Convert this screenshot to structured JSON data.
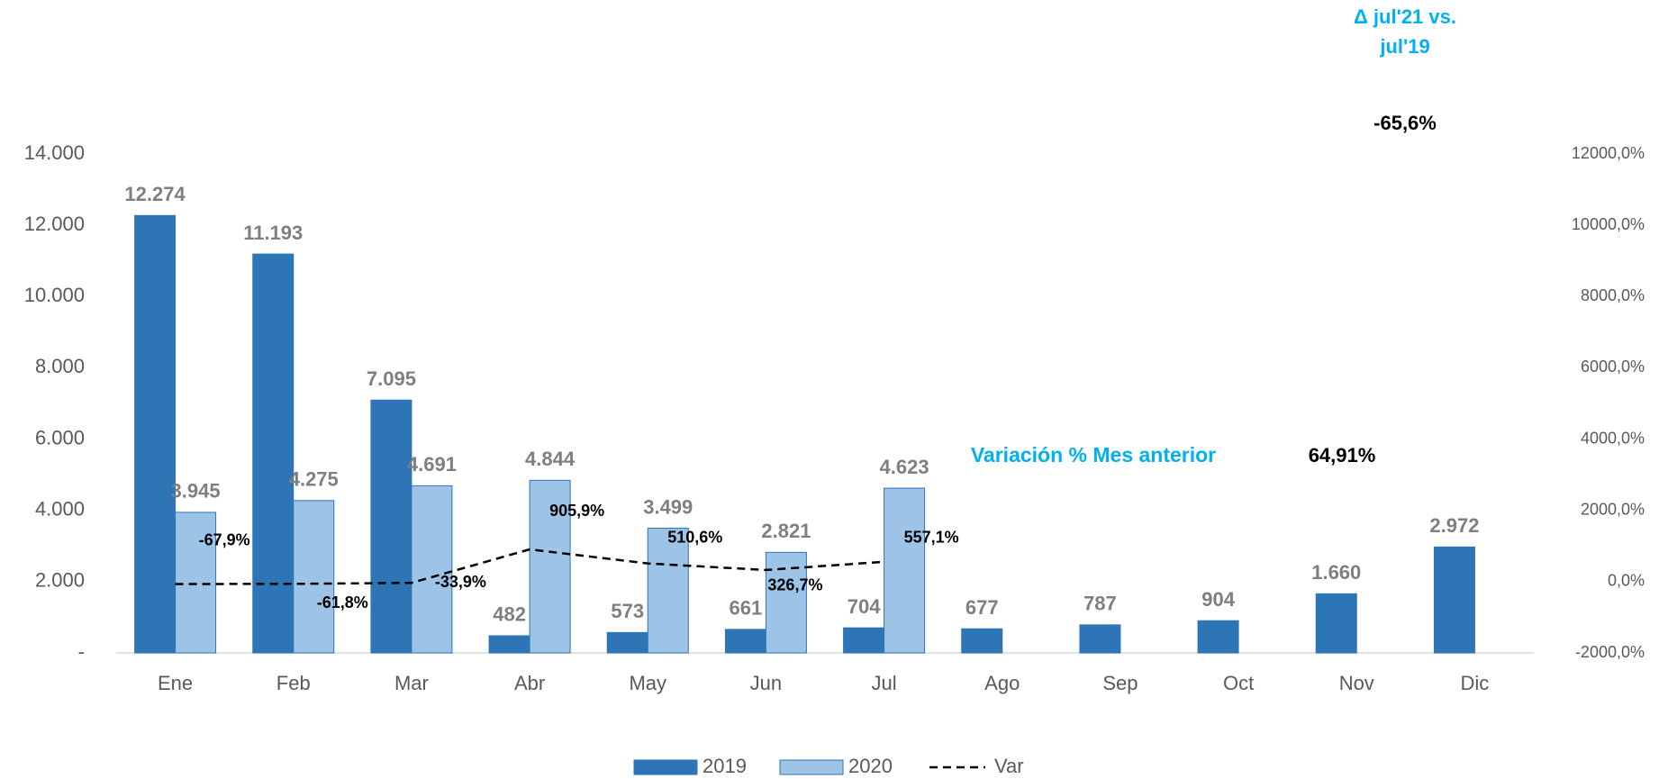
{
  "chart_data": {
    "type": "bar",
    "categories": [
      "Ene",
      "Feb",
      "Mar",
      "Abr",
      "May",
      "Jun",
      "Jul",
      "Ago",
      "Sep",
      "Oct",
      "Nov",
      "Dic"
    ],
    "series": [
      {
        "name": "2019",
        "color": "#2e75b6",
        "values": [
          12274,
          11193,
          7095,
          482,
          573,
          661,
          704,
          677,
          787,
          904,
          1660,
          2972
        ],
        "value_labels": [
          "12.274",
          "11.193",
          "7.095",
          "482",
          "573",
          "661",
          "704",
          "677",
          "787",
          "904",
          "1.660",
          "2.972"
        ]
      },
      {
        "name": "2020",
        "color": "#9dc3e6",
        "values": [
          3945,
          4275,
          4691,
          4844,
          3499,
          2821,
          4623,
          null,
          null,
          null,
          null,
          null
        ],
        "value_labels": [
          "3.945",
          "4.275",
          "4.691",
          "4.844",
          "3.499",
          "2.821",
          "4.623",
          null,
          null,
          null,
          null,
          null
        ]
      },
      {
        "name": "Var",
        "type": "line",
        "axis": "y2",
        "color": "#000000",
        "dashed": true,
        "values": [
          -67.9,
          -61.8,
          -33.9,
          905.9,
          510.6,
          326.7,
          557.1,
          null,
          null,
          null,
          null,
          null
        ],
        "value_labels": [
          "-67,9%",
          "-61,8%",
          "-33,9%",
          "905,9%",
          "510,6%",
          "326,7%",
          "557,1%",
          null,
          null,
          null,
          null,
          null
        ]
      }
    ],
    "ylim": [
      0,
      14000
    ],
    "yticks": [
      {
        "value": 0,
        "label": "-"
      },
      {
        "value": 2000,
        "label": "2.000"
      },
      {
        "value": 4000,
        "label": "4.000"
      },
      {
        "value": 6000,
        "label": "6.000"
      },
      {
        "value": 8000,
        "label": "8.000"
      },
      {
        "value": 10000,
        "label": "10.000"
      },
      {
        "value": 12000,
        "label": "12.000"
      },
      {
        "value": 14000,
        "label": "14.000"
      }
    ],
    "y2lim": [
      -2000,
      12000
    ],
    "y2ticks": [
      {
        "value": -2000,
        "label": "-2000,0%"
      },
      {
        "value": 0,
        "label": "0,0%"
      },
      {
        "value": 2000,
        "label": "2000,0%"
      },
      {
        "value": 4000,
        "label": "4000,0%"
      },
      {
        "value": 6000,
        "label": "6000,0%"
      },
      {
        "value": 8000,
        "label": "8000,0%"
      },
      {
        "value": 10000,
        "label": "10000,0%"
      },
      {
        "value": 12000,
        "label": "12000,0%"
      }
    ],
    "grid": false,
    "legend": "bottom",
    "annotations": [
      "Δ jul'21 vs.",
      "jul'19",
      "-65,6%",
      "Variación % Mes anterior",
      "64,91%"
    ]
  }
}
